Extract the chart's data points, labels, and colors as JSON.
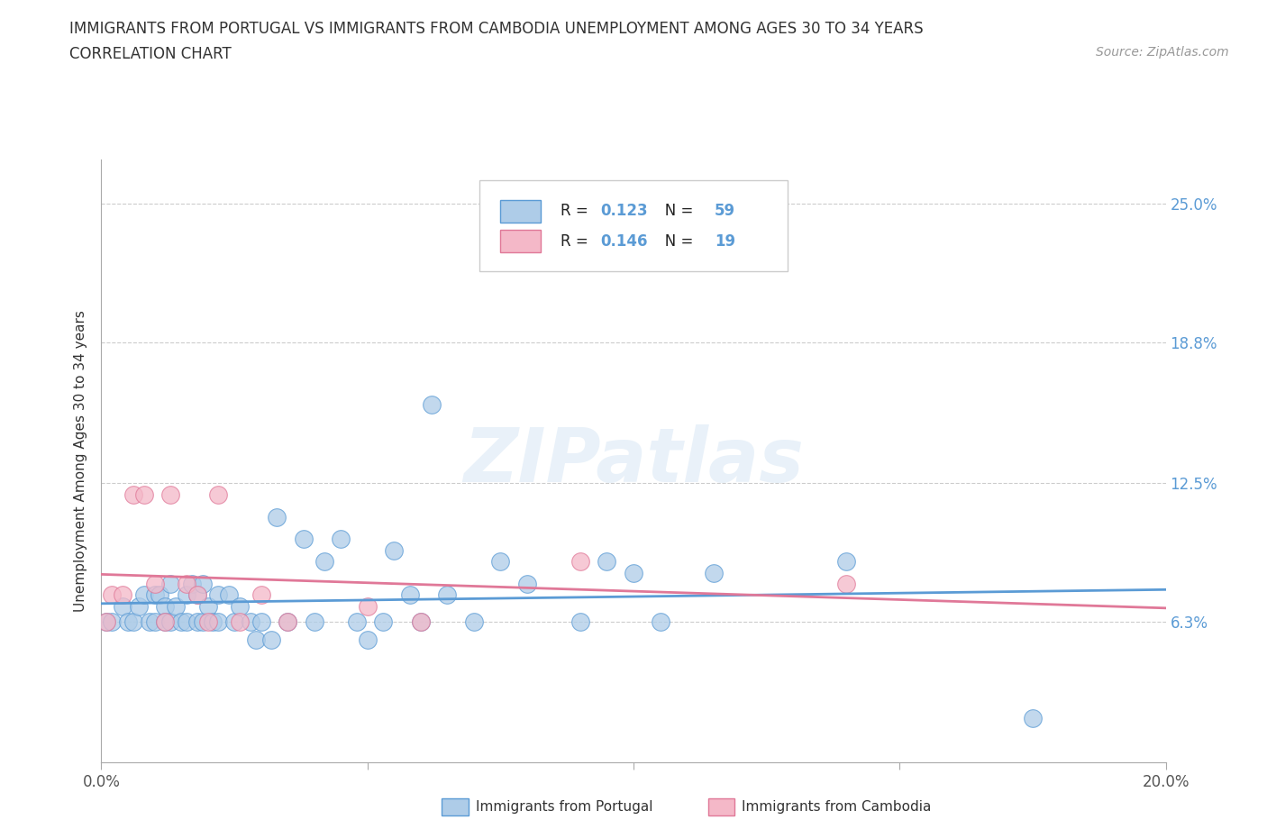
{
  "title_line1": "IMMIGRANTS FROM PORTUGAL VS IMMIGRANTS FROM CAMBODIA UNEMPLOYMENT AMONG AGES 30 TO 34 YEARS",
  "title_line2": "CORRELATION CHART",
  "source_text": "Source: ZipAtlas.com",
  "ylabel": "Unemployment Among Ages 30 to 34 years",
  "xlim": [
    0.0,
    0.2
  ],
  "ylim": [
    0.0,
    0.27
  ],
  "ytick_labels": [
    "6.3%",
    "12.5%",
    "18.8%",
    "25.0%"
  ],
  "ytick_values": [
    0.063,
    0.125,
    0.188,
    0.25
  ],
  "xtick_labels": [
    "0.0%",
    "20.0%"
  ],
  "xtick_values": [
    0.0,
    0.2
  ],
  "portugal_R": 0.123,
  "portugal_N": 59,
  "cambodia_R": 0.146,
  "cambodia_N": 19,
  "portugal_color": "#aecce8",
  "portugal_edge_color": "#5b9bd5",
  "cambodia_color": "#f4b8c8",
  "cambodia_edge_color": "#e07898",
  "portugal_line_color": "#5b9bd5",
  "cambodia_line_color": "#e07898",
  "portugal_x": [
    0.001,
    0.002,
    0.004,
    0.005,
    0.006,
    0.007,
    0.008,
    0.009,
    0.01,
    0.01,
    0.011,
    0.012,
    0.012,
    0.013,
    0.013,
    0.014,
    0.015,
    0.016,
    0.016,
    0.017,
    0.018,
    0.018,
    0.019,
    0.019,
    0.02,
    0.021,
    0.022,
    0.022,
    0.024,
    0.025,
    0.026,
    0.028,
    0.029,
    0.03,
    0.032,
    0.033,
    0.035,
    0.038,
    0.04,
    0.042,
    0.045,
    0.048,
    0.05,
    0.053,
    0.055,
    0.058,
    0.06,
    0.062,
    0.065,
    0.07,
    0.075,
    0.08,
    0.09,
    0.095,
    0.1,
    0.105,
    0.115,
    0.14,
    0.175
  ],
  "portugal_y": [
    0.063,
    0.063,
    0.07,
    0.063,
    0.063,
    0.07,
    0.075,
    0.063,
    0.063,
    0.075,
    0.075,
    0.07,
    0.063,
    0.063,
    0.08,
    0.07,
    0.063,
    0.075,
    0.063,
    0.08,
    0.063,
    0.075,
    0.063,
    0.08,
    0.07,
    0.063,
    0.075,
    0.063,
    0.075,
    0.063,
    0.07,
    0.063,
    0.055,
    0.063,
    0.055,
    0.11,
    0.063,
    0.1,
    0.063,
    0.09,
    0.1,
    0.063,
    0.055,
    0.063,
    0.095,
    0.075,
    0.063,
    0.16,
    0.075,
    0.063,
    0.09,
    0.08,
    0.063,
    0.09,
    0.085,
    0.063,
    0.085,
    0.09,
    0.02
  ],
  "cambodia_x": [
    0.001,
    0.002,
    0.004,
    0.006,
    0.008,
    0.01,
    0.012,
    0.013,
    0.016,
    0.018,
    0.02,
    0.022,
    0.026,
    0.03,
    0.035,
    0.05,
    0.06,
    0.09,
    0.14
  ],
  "cambodia_y": [
    0.063,
    0.075,
    0.075,
    0.12,
    0.12,
    0.08,
    0.063,
    0.12,
    0.08,
    0.075,
    0.063,
    0.12,
    0.063,
    0.075,
    0.063,
    0.07,
    0.063,
    0.09,
    0.08
  ]
}
